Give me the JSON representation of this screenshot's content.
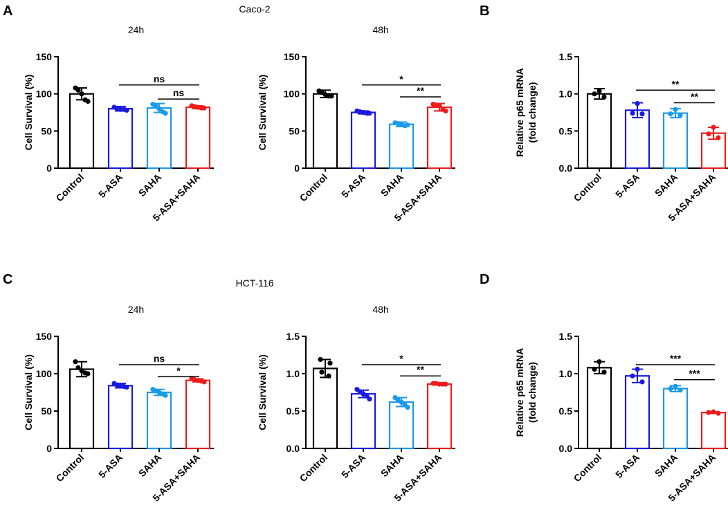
{
  "figure": {
    "colors": {
      "Control": "#000000",
      "5-ASA": "#1a1ae0",
      "SAHA": "#1a9ae8",
      "5-ASA+SAHA": "#ee1c1c"
    },
    "panel_letters": [
      "A",
      "B",
      "C",
      "D"
    ],
    "cell_line_titles": [
      "Caco-2",
      "HCT-116"
    ]
  },
  "chart_data": [
    {
      "id": "A-24h",
      "type": "bar",
      "panel": "A",
      "title": "24h",
      "ylabel": "Cell Survival (%)",
      "categories": [
        "Control",
        "5-ASA",
        "SAHA",
        "5-ASA+SAHA"
      ],
      "values": [
        100,
        80,
        81,
        82
      ],
      "errors": [
        8,
        3,
        6,
        2
      ],
      "points": [
        [
          108,
          105,
          100,
          92,
          90
        ],
        [
          82,
          80,
          79,
          79,
          78
        ],
        [
          86,
          84,
          80,
          76,
          74
        ],
        [
          84,
          83,
          82,
          81,
          81
        ]
      ],
      "ylim": [
        0,
        150
      ],
      "yticks": [
        0,
        50,
        100,
        150
      ],
      "tick_labels": [
        "0",
        "50",
        "100",
        "150"
      ],
      "significance": [
        {
          "from": 1,
          "to": 3,
          "label": "ns",
          "y": 112
        },
        {
          "from": 2,
          "to": 3,
          "label": "ns",
          "y": 93
        }
      ]
    },
    {
      "id": "A-48h",
      "type": "bar",
      "panel": "A",
      "title": "48h",
      "ylabel": "Cell Survival (%)",
      "categories": [
        "Control",
        "5-ASA",
        "SAHA",
        "5-ASA+SAHA"
      ],
      "values": [
        100,
        75,
        59,
        82
      ],
      "errors": [
        5,
        2,
        3,
        5
      ],
      "points": [
        [
          104,
          102,
          99,
          97,
          97
        ],
        [
          77,
          76,
          75,
          74,
          74
        ],
        [
          61,
          60,
          59,
          57,
          58
        ],
        [
          86,
          85,
          84,
          79,
          77
        ]
      ],
      "ylim": [
        0,
        150
      ],
      "yticks": [
        0,
        50,
        100,
        150
      ],
      "tick_labels": [
        "0",
        "50",
        "100",
        "150"
      ],
      "significance": [
        {
          "from": 1,
          "to": 3,
          "label": "*",
          "y": 112
        },
        {
          "from": 2,
          "to": 3,
          "label": "**",
          "y": 96
        }
      ]
    },
    {
      "id": "B",
      "type": "bar",
      "panel": "B",
      "title": "",
      "ylabel": "Relative p65 mRNA\n(fold change)",
      "categories": [
        "Control",
        "5-ASA",
        "SAHA",
        "5-ASA+SAHA"
      ],
      "values": [
        1.0,
        0.78,
        0.74,
        0.47
      ],
      "errors": [
        0.07,
        0.1,
        0.06,
        0.08
      ],
      "points": [
        [
          1.04,
          1.0,
          0.96
        ],
        [
          0.87,
          0.74,
          0.73
        ],
        [
          0.79,
          0.73,
          0.71
        ],
        [
          0.55,
          0.46,
          0.41
        ]
      ],
      "ylim": [
        0,
        1.5
      ],
      "yticks": [
        0,
        0.5,
        1.0,
        1.5
      ],
      "tick_labels": [
        "0.0",
        "0.5",
        "1.0",
        "1.5"
      ],
      "significance": [
        {
          "from": 1,
          "to": 3,
          "label": "**",
          "y": 1.05
        },
        {
          "from": 2,
          "to": 3,
          "label": "**",
          "y": 0.88
        }
      ]
    },
    {
      "id": "C-24h",
      "type": "bar",
      "panel": "C",
      "title": "24h",
      "ylabel": "Cell Survival (%)",
      "categories": [
        "Control",
        "5-ASA",
        "SAHA",
        "5-ASA+SAHA"
      ],
      "values": [
        106,
        84,
        75,
        91
      ],
      "errors": [
        10,
        3,
        4,
        2
      ],
      "points": [
        [
          116,
          108,
          104,
          101,
          100
        ],
        [
          87,
          85,
          84,
          83,
          82
        ],
        [
          79,
          77,
          75,
          73,
          71
        ],
        [
          94,
          92,
          91,
          90,
          89
        ]
      ],
      "ylim": [
        0,
        150
      ],
      "yticks": [
        0,
        50,
        100,
        150
      ],
      "tick_labels": [
        "0",
        "50",
        "100",
        "150"
      ],
      "significance": [
        {
          "from": 1,
          "to": 3,
          "label": "ns",
          "y": 112
        },
        {
          "from": 2,
          "to": 3,
          "label": "*",
          "y": 96
        }
      ]
    },
    {
      "id": "C-48h",
      "type": "bar",
      "panel": "C",
      "title": "48h",
      "ylabel": "Cell Survival (%)",
      "categories": [
        "Control",
        "5-ASA",
        "SAHA",
        "5-ASA+SAHA"
      ],
      "values": [
        1.07,
        0.73,
        0.62,
        0.86
      ],
      "errors": [
        0.12,
        0.05,
        0.06,
        0.01
      ],
      "points": [
        [
          1.19,
          1.14,
          1.02,
          0.97
        ],
        [
          0.79,
          0.76,
          0.73,
          0.7,
          0.66
        ],
        [
          0.68,
          0.65,
          0.62,
          0.59,
          0.55
        ],
        [
          0.87,
          0.87,
          0.86,
          0.86,
          0.86
        ]
      ],
      "ylim": [
        0,
        1.5
      ],
      "yticks": [
        0,
        0.5,
        1.0,
        1.5
      ],
      "tick_labels": [
        "0.0",
        "0.5",
        "1.0",
        "1.5"
      ],
      "significance": [
        {
          "from": 1,
          "to": 3,
          "label": "*",
          "y": 1.12
        },
        {
          "from": 2,
          "to": 3,
          "label": "**",
          "y": 0.97
        }
      ]
    },
    {
      "id": "D",
      "type": "bar",
      "panel": "D",
      "title": "",
      "ylabel": "Relative p65 mRNA\n(fold change)",
      "categories": [
        "Control",
        "5-ASA",
        "SAHA",
        "5-ASA+SAHA"
      ],
      "values": [
        1.08,
        0.97,
        0.8,
        0.48
      ],
      "errors": [
        0.08,
        0.09,
        0.04,
        0.01
      ],
      "points": [
        [
          1.16,
          1.06,
          1.02
        ],
        [
          1.06,
          0.97,
          0.89
        ],
        [
          0.83,
          0.8,
          0.78
        ],
        [
          0.49,
          0.48,
          0.47
        ]
      ],
      "ylim": [
        0,
        1.5
      ],
      "yticks": [
        0,
        0.5,
        1.0,
        1.5
      ],
      "tick_labels": [
        "0.0",
        "0.5",
        "1.0",
        "1.5"
      ],
      "significance": [
        {
          "from": 1,
          "to": 3,
          "label": "***",
          "y": 1.12
        },
        {
          "from": 2,
          "to": 3,
          "label": "***",
          "y": 0.92
        }
      ]
    }
  ]
}
